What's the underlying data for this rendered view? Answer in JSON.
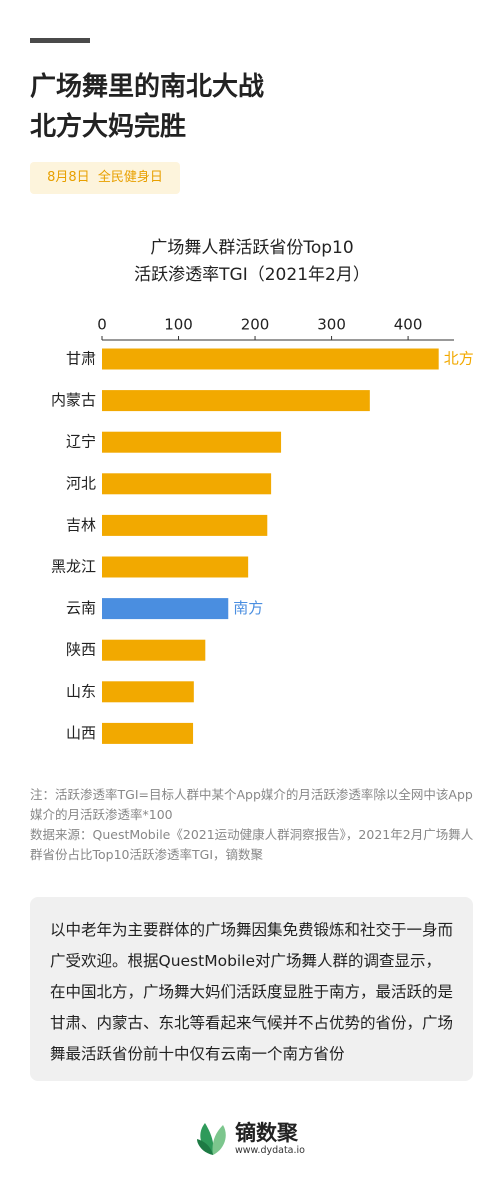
{
  "header": {
    "title_lines": [
      "广场舞里的南北大战",
      "北方大妈完胜"
    ],
    "tag": "8月8日  全民健身日"
  },
  "chart_data": {
    "type": "bar",
    "orientation": "horizontal",
    "title_lines": [
      "广场舞人群活跃省份Top10",
      "活跃渗透率TGI（2021年2月）"
    ],
    "categories": [
      "甘肃",
      "内蒙古",
      "辽宁",
      "河北",
      "吉林",
      "黑龙江",
      "云南",
      "陕西",
      "山东",
      "山西"
    ],
    "values": [
      440,
      350,
      234,
      221,
      216,
      191,
      165,
      135,
      120,
      119
    ],
    "colors": [
      "#f2a900",
      "#f2a900",
      "#f2a900",
      "#f2a900",
      "#f2a900",
      "#f2a900",
      "#4a8ee0",
      "#f2a900",
      "#f2a900",
      "#f2a900"
    ],
    "xlim": [
      0,
      460
    ],
    "xticks": [
      0,
      100,
      200,
      300,
      400
    ],
    "grid": false,
    "annotations": [
      {
        "text": "北方",
        "category": "甘肃",
        "color": "#f2a900"
      },
      {
        "text": "南方",
        "category": "云南",
        "color": "#4a8ee0"
      }
    ]
  },
  "notes": [
    "注：活跃渗透率TGI=目标人群中某个App媒介的月活跃渗透率除以全网中该App媒介的月活跃渗透率*100",
    "数据来源：QuestMobile《2021运动健康人群洞察报告》，2021年2月广场舞人群省份占比Top10活跃渗透率TGI，镝数聚"
  ],
  "description": "以中老年为主要群体的广场舞因集免费锻炼和社交于一身而广受欢迎。根据QuestMobile对广场舞人群的调查显示，在中国北方，广场舞大妈们活跃度显胜于南方，最活跃的是甘肃、内蒙古、东北等看起来气候并不占优势的省份，广场舞最活跃省份前十中仅有云南一个南方省份",
  "logo": {
    "name": "镝数聚",
    "url": "www.dydata.io"
  }
}
